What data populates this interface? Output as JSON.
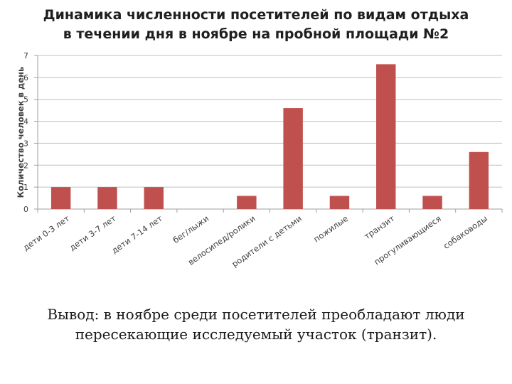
{
  "chart_data": {
    "type": "bar",
    "title_lines": [
      "Динамика численности посетителей по видам отдыха",
      "в течении дня в ноябре на пробной площади №2"
    ],
    "xlabel": "",
    "ylabel": "Количество человек в день",
    "ylim": [
      0,
      7
    ],
    "yticks": [
      "0",
      "1",
      "2",
      "3",
      "4",
      "5",
      "6",
      "7"
    ],
    "grid": true,
    "legend": "none",
    "bar_color": "#c0504d",
    "categories": [
      "дети 0-3 лет",
      "дети 3-7 лет",
      "дети 7-14 лет",
      "бег/лыжи",
      "велосипед/ролики",
      "родители с детьми",
      "пожилые",
      "транзит",
      "прогуливающиеся",
      "собаководы"
    ],
    "values": [
      1,
      1,
      1,
      0,
      0.6,
      4.6,
      0.6,
      6.6,
      0.6,
      2.6
    ]
  },
  "conclusion": {
    "lines": [
      "Вывод: в ноябре среди посетителей преобладают люди",
      "пересекающие исследуемый участок (транзит)."
    ]
  }
}
